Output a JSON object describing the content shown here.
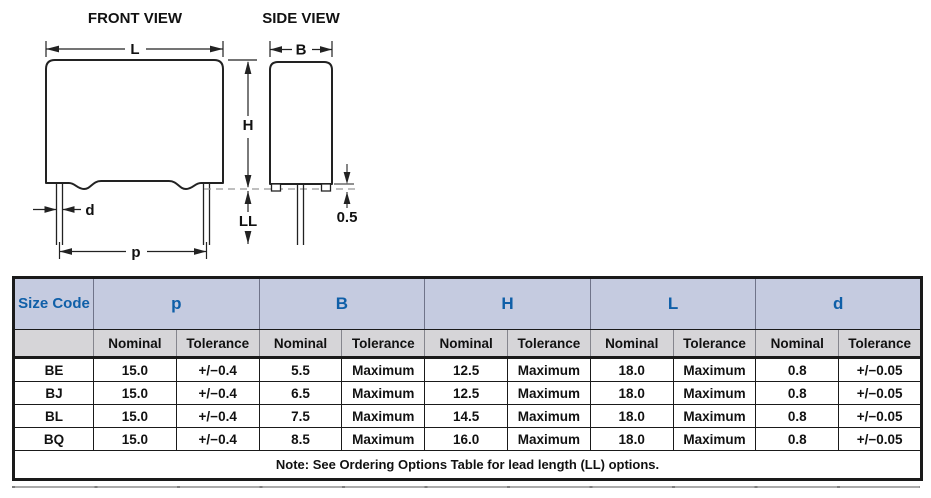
{
  "colors": {
    "header_text_blue": "#0f5fa8",
    "header_band_lavender": "#c5cbe0",
    "subheader_band_gray": "#d6d5d8",
    "table_border": "#1a1a1a",
    "diagram_line": "#222222",
    "seating_plane_dash": "#999999"
  },
  "diagram": {
    "front_view": {
      "title": "FRONT VIEW",
      "dim_length_label": "L",
      "dim_height_label": "H",
      "dim_lead_diameter_label": "d",
      "dim_pitch_label": "p",
      "dim_lead_length_label": "LL"
    },
    "side_view": {
      "title": "SIDE VIEW",
      "dim_width_label": "B",
      "dim_standoff_value": "0.5"
    }
  },
  "table": {
    "corner_label": "Size Code",
    "groups": [
      "p",
      "B",
      "H",
      "L",
      "d"
    ],
    "nominal_label": "Nominal",
    "tolerance_label": "Tolerance",
    "rows": [
      {
        "code": "BE",
        "values": [
          "15.0",
          "+/−0.4",
          "5.5",
          "Maximum",
          "12.5",
          "Maximum",
          "18.0",
          "Maximum",
          "0.8",
          "+/−0.05"
        ]
      },
      {
        "code": "BJ",
        "values": [
          "15.0",
          "+/−0.4",
          "6.5",
          "Maximum",
          "12.5",
          "Maximum",
          "18.0",
          "Maximum",
          "0.8",
          "+/−0.05"
        ]
      },
      {
        "code": "BL",
        "values": [
          "15.0",
          "+/−0.4",
          "7.5",
          "Maximum",
          "14.5",
          "Maximum",
          "18.0",
          "Maximum",
          "0.8",
          "+/−0.05"
        ]
      },
      {
        "code": "BQ",
        "values": [
          "15.0",
          "+/−0.4",
          "8.5",
          "Maximum",
          "16.0",
          "Maximum",
          "18.0",
          "Maximum",
          "0.8",
          "+/−0.05"
        ]
      }
    ],
    "note": "Note: See Ordering Options Table for lead length (LL) options."
  }
}
